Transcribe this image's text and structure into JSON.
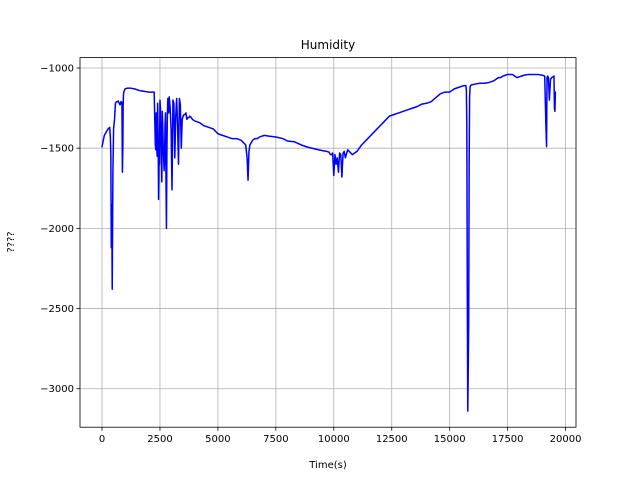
{
  "chart_data": {
    "type": "line",
    "title": "Humidity",
    "xlabel": "Time(s)",
    "ylabel": "????",
    "xlim": [
      -950,
      20450
    ],
    "ylim": [
      -3240,
      -935
    ],
    "xticks": [
      0,
      2500,
      5000,
      7500,
      10000,
      12500,
      15000,
      17500,
      20000
    ],
    "xtick_labels": [
      "0",
      "2500",
      "5000",
      "7500",
      "10000",
      "12500",
      "15000",
      "17500",
      "20000"
    ],
    "yticks": [
      -1000,
      -1500,
      -2000,
      -2500,
      -3000
    ],
    "ytick_labels": [
      "−1000",
      "−1500",
      "−2000",
      "−2500",
      "−3000"
    ],
    "grid": true,
    "series": [
      {
        "color": "#0000ff",
        "x": [
          0,
          100,
          180,
          260,
          330,
          360,
          380,
          400,
          420,
          440,
          470,
          500,
          540,
          580,
          620,
          660,
          700,
          740,
          780,
          820,
          860,
          880,
          900,
          910,
          925,
          940,
          960,
          1000,
          1100,
          1200,
          1400,
          1600,
          1800,
          2000,
          2150,
          2250,
          2300,
          2320,
          2340,
          2360,
          2380,
          2400,
          2420,
          2440,
          2460,
          2480,
          2500,
          2520,
          2540,
          2560,
          2580,
          2600,
          2620,
          2640,
          2680,
          2700,
          2720,
          2740,
          2760,
          2780,
          2800,
          2820,
          2840,
          2860,
          2880,
          2900,
          2940,
          2980,
          3020,
          3060,
          3100,
          3140,
          3180,
          3220,
          3260,
          3300,
          3340,
          3380,
          3420,
          3460,
          3500,
          3540,
          3580,
          3620,
          3660,
          3700,
          3740,
          3780,
          3820,
          3860,
          3900,
          4000,
          4200,
          4400,
          4600,
          4800,
          5000,
          5200,
          5400,
          5600,
          5800,
          6000,
          6200,
          6260,
          6300,
          6340,
          6380,
          6420,
          6500,
          6600,
          6700,
          6800,
          7000,
          7200,
          7500,
          7800,
          8000,
          8300,
          8600,
          8900,
          9200,
          9500,
          9700,
          9800,
          9850,
          9900,
          9950,
          10000,
          10050,
          10100,
          10150,
          10200,
          10250,
          10300,
          10350,
          10400,
          10450,
          10500,
          10600,
          10800,
          11000,
          11200,
          11400,
          11600,
          11800,
          12000,
          12200,
          12400,
          12600,
          12800,
          13000,
          13200,
          13400,
          13600,
          13800,
          14000,
          14200,
          14400,
          14600,
          14800,
          15000,
          15200,
          15400,
          15600,
          15700,
          15720,
          15740,
          15760,
          15780,
          15800,
          15820,
          15840,
          15860,
          15880,
          15900,
          15950,
          16100,
          16300,
          16500,
          16700,
          16900,
          17000,
          17100,
          17200,
          17300,
          17400,
          17500,
          17600,
          17700,
          17800,
          17900,
          18000,
          18200,
          18400,
          18600,
          18800,
          19000,
          19100,
          19150,
          19180,
          19200,
          19230,
          19260,
          19300,
          19350,
          19400,
          19450,
          19500,
          19520,
          19540,
          19560
        ],
        "y": [
          -1490,
          -1420,
          -1400,
          -1380,
          -1370,
          -1430,
          -1540,
          -2120,
          -1850,
          -2380,
          -1650,
          -1380,
          -1320,
          -1220,
          -1210,
          -1210,
          -1205,
          -1220,
          -1230,
          -1210,
          -1215,
          -1650,
          -1480,
          -1240,
          -1170,
          -1150,
          -1140,
          -1130,
          -1125,
          -1125,
          -1130,
          -1140,
          -1145,
          -1150,
          -1150,
          -1150,
          -1480,
          -1510,
          -1280,
          -1500,
          -1550,
          -1220,
          -1400,
          -1820,
          -1560,
          -1600,
          -1200,
          -1250,
          -1400,
          -1550,
          -1710,
          -1270,
          -1350,
          -1490,
          -1640,
          -1540,
          -1350,
          -1280,
          -1700,
          -2000,
          -1510,
          -1290,
          -1190,
          -1230,
          -1280,
          -1180,
          -1250,
          -1380,
          -1760,
          -1200,
          -1220,
          -1560,
          -1300,
          -1190,
          -1360,
          -1600,
          -1190,
          -1230,
          -1500,
          -1320,
          -1300,
          -1290,
          -1290,
          -1280,
          -1320,
          -1310,
          -1310,
          -1300,
          -1305,
          -1310,
          -1320,
          -1330,
          -1340,
          -1360,
          -1370,
          -1380,
          -1410,
          -1420,
          -1430,
          -1440,
          -1440,
          -1450,
          -1480,
          -1560,
          -1700,
          -1520,
          -1480,
          -1470,
          -1450,
          -1440,
          -1440,
          -1430,
          -1420,
          -1425,
          -1430,
          -1440,
          -1455,
          -1460,
          -1480,
          -1495,
          -1505,
          -1515,
          -1520,
          -1525,
          -1540,
          -1540,
          -1530,
          -1670,
          -1540,
          -1600,
          -1560,
          -1650,
          -1530,
          -1540,
          -1680,
          -1530,
          -1520,
          -1560,
          -1510,
          -1540,
          -1520,
          -1480,
          -1450,
          -1420,
          -1390,
          -1360,
          -1330,
          -1300,
          -1290,
          -1280,
          -1270,
          -1260,
          -1250,
          -1240,
          -1225,
          -1220,
          -1210,
          -1185,
          -1160,
          -1150,
          -1150,
          -1130,
          -1120,
          -1110,
          -1110,
          -1140,
          -1350,
          -2400,
          -3140,
          -2900,
          -2600,
          -1600,
          -1180,
          -1120,
          -1110,
          -1105,
          -1100,
          -1095,
          -1095,
          -1090,
          -1080,
          -1070,
          -1060,
          -1060,
          -1050,
          -1045,
          -1040,
          -1040,
          -1040,
          -1050,
          -1060,
          -1055,
          -1045,
          -1040,
          -1040,
          -1040,
          -1045,
          -1050,
          -1350,
          -1490,
          -1060,
          -1050,
          -1060,
          -1200,
          -1070,
          -1060,
          -1055,
          -1050,
          -1250,
          -1270,
          -1150
        ]
      }
    ]
  }
}
